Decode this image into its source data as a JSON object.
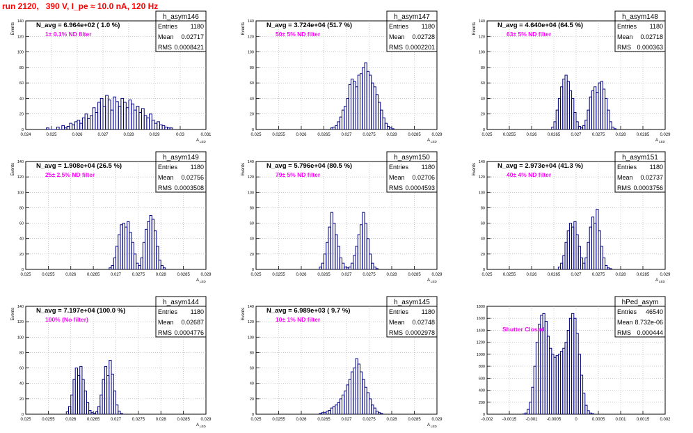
{
  "page": {
    "run_title": "run 2120,   390 V, I_pe ≈ 10.0 nA, 120 Hz"
  },
  "colors": {
    "histogram_line": "#000080",
    "annotation": "#ff00ff",
    "title": "#ff0000",
    "grid": "#aaaaaa"
  },
  "chart_data": [
    {
      "type": "bar",
      "name": "h_asym146",
      "ylabel": "Events",
      "xlabel": "A_LED",
      "xlim": [
        0.024,
        0.031
      ],
      "ylim": [
        0,
        140
      ],
      "xticks": [
        "0.024",
        "0.025",
        "0.026",
        "0.027",
        "0.028",
        "0.029",
        "0.03",
        "0.031"
      ],
      "yticks": [
        "0",
        "20",
        "40",
        "60",
        "80",
        "100",
        "120",
        "140"
      ],
      "navg": "N_avg = 6.964e+02 ( 1.0 %)",
      "filter": "1± 0.1% ND filter",
      "stats": {
        "Entries": "1180",
        "Mean": "0.02717",
        "RMS": "0.0008421"
      },
      "hist": {
        "x0": 0.0248,
        "dx": 0.0001,
        "values": [
          2,
          0,
          0,
          0,
          3,
          0,
          5,
          2,
          4,
          8,
          6,
          10,
          12,
          8,
          15,
          20,
          14,
          18,
          28,
          22,
          35,
          40,
          30,
          44,
          38,
          25,
          42,
          36,
          30,
          40,
          35,
          28,
          38,
          33,
          25,
          30,
          22,
          27,
          18,
          15,
          20,
          12,
          8,
          10,
          6,
          5,
          3,
          2,
          2
        ]
      },
      "grid": true
    },
    {
      "type": "bar",
      "name": "h_asym147",
      "ylabel": "Events",
      "xlabel": "A_LED",
      "xlim": [
        0.025,
        0.029
      ],
      "ylim": [
        0,
        140
      ],
      "xticks": [
        "0.025",
        "0.0255",
        "0.026",
        "0.0265",
        "0.027",
        "0.0275",
        "0.028",
        "0.0285",
        "0.029"
      ],
      "yticks": [
        "0",
        "20",
        "40",
        "60",
        "80",
        "100",
        "120",
        "140"
      ],
      "navg": "N_avg = 3.724e+04 (51.7 %)",
      "filter": "50± 5% ND filter",
      "stats": {
        "Entries": "1180",
        "Mean": "0.02728",
        "RMS": "0.0002201"
      },
      "hist": {
        "x0": 0.02665,
        "dx": 5e-05,
        "values": [
          2,
          3,
          5,
          10,
          16,
          25,
          30,
          40,
          58,
          65,
          62,
          55,
          70,
          72,
          80,
          86,
          75,
          70,
          60,
          55,
          45,
          35,
          25,
          15,
          8,
          4,
          2,
          1
        ]
      },
      "grid": true
    },
    {
      "type": "bar",
      "name": "h_asym148",
      "ylabel": "Events",
      "xlabel": "A_LED",
      "xlim": [
        0.025,
        0.029
      ],
      "ylim": [
        0,
        140
      ],
      "xticks": [
        "0.025",
        "0.0255",
        "0.026",
        "0.0265",
        "0.027",
        "0.0275",
        "0.028",
        "0.0285",
        "0.029"
      ],
      "yticks": [
        "0",
        "20",
        "40",
        "60",
        "80",
        "100",
        "120",
        "140"
      ],
      "navg": "N_avg = 4.640e+04 (64.5 %)",
      "filter": "63± 5% ND filter",
      "stats": {
        "Entries": "1180",
        "Mean": "0.02718",
        "RMS": "0.000363"
      },
      "hist": {
        "x0": 0.02645,
        "dx": 5e-05,
        "values": [
          3,
          10,
          25,
          40,
          55,
          65,
          70,
          62,
          50,
          40,
          22,
          10,
          4,
          2,
          5,
          12,
          25,
          42,
          50,
          55,
          48,
          60,
          62,
          52,
          40,
          25,
          10,
          3,
          1
        ]
      },
      "grid": true
    },
    {
      "type": "bar",
      "name": "h_asym149",
      "ylabel": "Events",
      "xlabel": "A_LED",
      "xlim": [
        0.025,
        0.029
      ],
      "ylim": [
        0,
        140
      ],
      "xticks": [
        "0.025",
        "0.0255",
        "0.026",
        "0.0265",
        "0.027",
        "0.0275",
        "0.028",
        "0.0285",
        "0.029"
      ],
      "yticks": [
        "0",
        "20",
        "40",
        "60",
        "80",
        "100",
        "120",
        "140"
      ],
      "navg": "N_avg = 1.908e+04 (26.5 %)",
      "filter": "25± 2.5% ND filter",
      "stats": {
        "Entries": "1180",
        "Mean": "0.02756",
        "RMS": "0.0003508"
      },
      "hist": {
        "x0": 0.02685,
        "dx": 5e-05,
        "values": [
          2,
          5,
          15,
          30,
          45,
          58,
          60,
          55,
          62,
          48,
          35,
          20,
          8,
          5,
          15,
          35,
          52,
          62,
          70,
          65,
          50,
          30,
          12,
          5,
          2
        ]
      },
      "grid": true
    },
    {
      "type": "bar",
      "name": "h_asym150",
      "ylabel": "Events",
      "xlabel": "A_LED",
      "xlim": [
        0.025,
        0.029
      ],
      "ylim": [
        0,
        140
      ],
      "xticks": [
        "0.025",
        "0.0255",
        "0.026",
        "0.0265",
        "0.027",
        "0.0275",
        "0.028",
        "0.0285",
        "0.029"
      ],
      "yticks": [
        "0",
        "20",
        "40",
        "60",
        "80",
        "100",
        "120",
        "140"
      ],
      "navg": "N_avg = 5.796e+04 (80.5 %)",
      "filter": "79± 5% ND filter",
      "stats": {
        "Entries": "1180",
        "Mean": "0.02706",
        "RMS": "0.0004593"
      },
      "hist": {
        "x0": 0.0264,
        "dx": 5e-05,
        "values": [
          3,
          8,
          20,
          35,
          55,
          74,
          60,
          45,
          30,
          15,
          8,
          3,
          2,
          3,
          8,
          18,
          30,
          45,
          58,
          74,
          60,
          40,
          20,
          8,
          3,
          1
        ]
      },
      "grid": true
    },
    {
      "type": "bar",
      "name": "h_asym151",
      "ylabel": "Events",
      "xlabel": "A_LED",
      "xlim": [
        0.025,
        0.029
      ],
      "ylim": [
        0,
        140
      ],
      "xticks": [
        "0.025",
        "0.0255",
        "0.026",
        "0.0265",
        "0.027",
        "0.0275",
        "0.028",
        "0.0285",
        "0.029"
      ],
      "yticks": [
        "0",
        "20",
        "40",
        "60",
        "80",
        "100",
        "120",
        "140"
      ],
      "navg": "N_avg = 2.973e+04 (41.3 %)",
      "filter": "40± 4% ND filter",
      "stats": {
        "Entries": "1180",
        "Mean": "0.02737",
        "RMS": "0.0003756"
      },
      "hist": {
        "x0": 0.0266,
        "dx": 5e-05,
        "values": [
          3,
          8,
          18,
          35,
          50,
          60,
          55,
          62,
          45,
          30,
          15,
          8,
          15,
          35,
          55,
          68,
          60,
          78,
          50,
          30,
          15,
          5,
          2,
          1
        ]
      },
      "grid": true
    },
    {
      "type": "bar",
      "name": "h_asym144",
      "ylabel": "Events",
      "xlabel": "A_LED",
      "xlim": [
        0.025,
        0.029
      ],
      "ylim": [
        0,
        140
      ],
      "xticks": [
        "0.025",
        "0.0255",
        "0.026",
        "0.0265",
        "0.027",
        "0.0275",
        "0.028",
        "0.0285",
        "0.029"
      ],
      "yticks": [
        "0",
        "20",
        "40",
        "60",
        "80",
        "100",
        "120",
        "140"
      ],
      "navg": "N_avg = 7.197e+04 (100.0 %)",
      "filter": "100% (No filter)",
      "stats": {
        "Entries": "1180",
        "Mean": "0.02687",
        "RMS": "0.0004776"
      },
      "hist": {
        "x0": 0.0259,
        "dx": 5e-05,
        "values": [
          3,
          10,
          25,
          45,
          60,
          50,
          62,
          45,
          30,
          15,
          5,
          2,
          1,
          3,
          10,
          25,
          45,
          62,
          50,
          70,
          52,
          30,
          12,
          4,
          1
        ]
      },
      "grid": true
    },
    {
      "type": "bar",
      "name": "h_asym145",
      "ylabel": "Events",
      "xlabel": "A_LED",
      "xlim": [
        0.025,
        0.029
      ],
      "ylim": [
        0,
        140
      ],
      "xticks": [
        "0.025",
        "0.0255",
        "0.026",
        "0.0265",
        "0.027",
        "0.0275",
        "0.028",
        "0.0285",
        "0.029"
      ],
      "yticks": [
        "0",
        "20",
        "40",
        "60",
        "80",
        "100",
        "120",
        "140"
      ],
      "navg": "N_avg = 6.989e+03 ( 9.7 %)",
      "filter": "10± 1% ND filter",
      "stats": {
        "Entries": "1180",
        "Mean": "0.02748",
        "RMS": "0.0002978"
      },
      "hist": {
        "x0": 0.0264,
        "dx": 5e-05,
        "values": [
          1,
          2,
          2,
          4,
          5,
          8,
          10,
          12,
          15,
          20,
          25,
          30,
          38,
          45,
          55,
          60,
          72,
          65,
          55,
          45,
          35,
          28,
          20,
          12,
          8,
          4,
          2,
          1
        ]
      },
      "grid": true
    },
    {
      "type": "bar",
      "name": "hPed_asym",
      "ylabel": "",
      "xlabel": "",
      "xlim": [
        -0.002,
        0.002
      ],
      "ylim": [
        0,
        1800
      ],
      "xticks": [
        "-0.002",
        "-0.0015",
        "-0.001",
        "-0.0005",
        "0",
        "0.0005",
        "0.001",
        "0.0015",
        "0.002"
      ],
      "yticks": [
        "0",
        "200",
        "400",
        "600",
        "800",
        "1000",
        "1200",
        "1400",
        "1600",
        "1800"
      ],
      "navg": "",
      "filter": "Shutter Closed",
      "stats": {
        "Entries": "46540",
        "Mean": "8.732e-06",
        "RMS": "0.000444"
      },
      "hist": {
        "x0": -0.0012,
        "dx": 5e-05,
        "values": [
          5,
          20,
          80,
          200,
          450,
          800,
          1200,
          1500,
          1650,
          1680,
          1550,
          1300,
          1100,
          1000,
          950,
          980,
          1000,
          1050,
          1100,
          1200,
          1400,
          1600,
          1680,
          1600,
          1350,
          1000,
          650,
          350,
          150,
          60,
          20,
          8
        ]
      },
      "grid": true
    }
  ]
}
